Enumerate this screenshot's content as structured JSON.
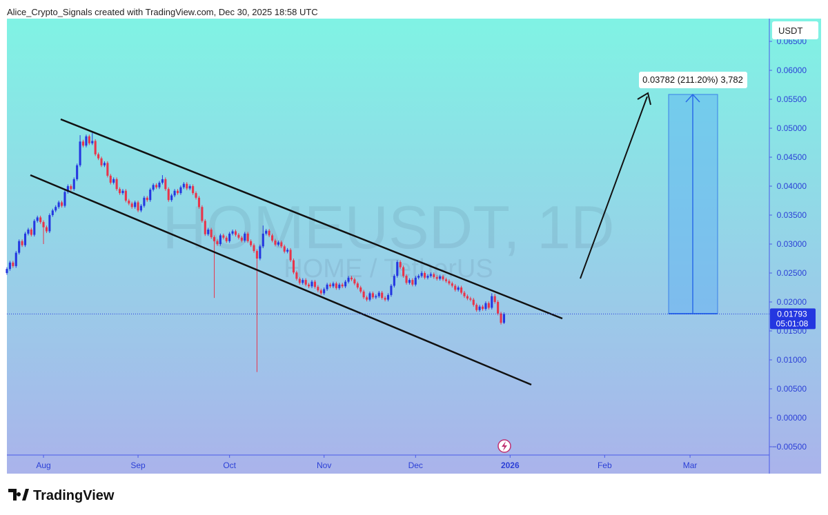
{
  "header": "Alice_Crypto_Signals created with TradingView.com, Dec 30, 2025 18:58 UTC",
  "footer": "TradingView",
  "chart_data": {
    "type": "candlestick",
    "title": "HOMEUSDT, 1D",
    "subtitle": "HOME / TetherUS",
    "currency": "USDT",
    "up_color": "#2437e0",
    "down_color": "#e8344a",
    "xlim": [
      0,
      250
    ],
    "xticks": [
      {
        "value": 12,
        "label": "Aug"
      },
      {
        "value": 43,
        "label": "Sep"
      },
      {
        "value": 73,
        "label": "Oct"
      },
      {
        "value": 104,
        "label": "Nov"
      },
      {
        "value": 134,
        "label": "Dec"
      },
      {
        "value": 165,
        "label": "2026"
      },
      {
        "value": 196,
        "label": "Feb"
      },
      {
        "value": 224,
        "label": "Mar"
      }
    ],
    "ylim": [
      -0.00643,
      0.06893
    ],
    "yticks": [
      {
        "value": -0.005,
        "label": "−0.00500"
      },
      {
        "value": 0,
        "label": "0.00000"
      },
      {
        "value": 0.005,
        "label": "0.00500"
      },
      {
        "value": 0.01,
        "label": "0.01000"
      },
      {
        "value": 0.015,
        "label": "0.01500"
      },
      {
        "value": 0.02,
        "label": "0.02000"
      },
      {
        "value": 0.025,
        "label": "0.02500"
      },
      {
        "value": 0.03,
        "label": "0.03000"
      },
      {
        "value": 0.035,
        "label": "0.03500"
      },
      {
        "value": 0.04,
        "label": "0.04000"
      },
      {
        "value": 0.045,
        "label": "0.04500"
      },
      {
        "value": 0.05,
        "label": "0.05000"
      },
      {
        "value": 0.055,
        "label": "0.05500"
      },
      {
        "value": 0.06,
        "label": "0.06000"
      },
      {
        "value": 0.065,
        "label": "0.06500"
      }
    ],
    "countdown": "05:01:08",
    "annotation": "0.03782 (211.20%) 3,782",
    "candles": [
      [
        0.025,
        0.026,
        0.0247,
        0.0257
      ],
      [
        0.0257,
        0.0271,
        0.0254,
        0.0268
      ],
      [
        0.0268,
        0.0271,
        0.0259,
        0.0262
      ],
      [
        0.0262,
        0.0288,
        0.0259,
        0.0285
      ],
      [
        0.0285,
        0.0308,
        0.0282,
        0.0305
      ],
      [
        0.0305,
        0.0308,
        0.0295,
        0.0298
      ],
      [
        0.0298,
        0.0321,
        0.0295,
        0.0318
      ],
      [
        0.0318,
        0.0328,
        0.0315,
        0.0325
      ],
      [
        0.0325,
        0.0328,
        0.0313,
        0.0316
      ],
      [
        0.0316,
        0.0343,
        0.0313,
        0.034
      ],
      [
        0.034,
        0.0349,
        0.0337,
        0.0346
      ],
      [
        0.0346,
        0.0349,
        0.0335,
        0.0338
      ],
      [
        0.0338,
        0.0341,
        0.03,
        0.0329
      ],
      [
        0.0329,
        0.0332,
        0.0319,
        0.0322
      ],
      [
        0.0322,
        0.0353,
        0.0319,
        0.035
      ],
      [
        0.035,
        0.0361,
        0.0347,
        0.0358
      ],
      [
        0.0358,
        0.0367,
        0.0355,
        0.0364
      ],
      [
        0.0364,
        0.0375,
        0.0361,
        0.0372
      ],
      [
        0.0372,
        0.0375,
        0.0363,
        0.0366
      ],
      [
        0.0366,
        0.0393,
        0.0363,
        0.039
      ],
      [
        0.039,
        0.0403,
        0.0387,
        0.04
      ],
      [
        0.04,
        0.0403,
        0.0392,
        0.0395
      ],
      [
        0.0395,
        0.0415,
        0.0392,
        0.0412
      ],
      [
        0.0412,
        0.0439,
        0.0409,
        0.0436
      ],
      [
        0.0436,
        0.0488,
        0.0433,
        0.0477
      ],
      [
        0.0477,
        0.048,
        0.0467,
        0.047
      ],
      [
        0.047,
        0.0489,
        0.0467,
        0.0486
      ],
      [
        0.0486,
        0.0489,
        0.0471,
        0.0474
      ],
      [
        0.0474,
        0.0492,
        0.0471,
        0.0478
      ],
      [
        0.0478,
        0.0481,
        0.0452,
        0.0455
      ],
      [
        0.0455,
        0.0458,
        0.0445,
        0.0448
      ],
      [
        0.0448,
        0.0451,
        0.0433,
        0.0436
      ],
      [
        0.0436,
        0.0443,
        0.0433,
        0.044
      ],
      [
        0.044,
        0.0443,
        0.0415,
        0.0418
      ],
      [
        0.0418,
        0.0421,
        0.0403,
        0.0406
      ],
      [
        0.0406,
        0.0415,
        0.0403,
        0.0412
      ],
      [
        0.0412,
        0.0415,
        0.0392,
        0.0395
      ],
      [
        0.0395,
        0.0398,
        0.0385,
        0.0388
      ],
      [
        0.0388,
        0.0395,
        0.0385,
        0.0392
      ],
      [
        0.0392,
        0.0395,
        0.0372,
        0.0375
      ],
      [
        0.0375,
        0.0378,
        0.0367,
        0.037
      ],
      [
        0.037,
        0.0373,
        0.0361,
        0.0364
      ],
      [
        0.0364,
        0.0375,
        0.0361,
        0.0372
      ],
      [
        0.0372,
        0.0375,
        0.0355,
        0.0358
      ],
      [
        0.0358,
        0.0369,
        0.0355,
        0.0366
      ],
      [
        0.0366,
        0.0383,
        0.0363,
        0.038
      ],
      [
        0.038,
        0.0383,
        0.0373,
        0.0376
      ],
      [
        0.0376,
        0.0397,
        0.0373,
        0.0394
      ],
      [
        0.0394,
        0.0405,
        0.0391,
        0.0402
      ],
      [
        0.0402,
        0.0405,
        0.0395,
        0.0398
      ],
      [
        0.0398,
        0.0409,
        0.0395,
        0.0406
      ],
      [
        0.0406,
        0.0419,
        0.0403,
        0.0412
      ],
      [
        0.0412,
        0.0415,
        0.0392,
        0.0395
      ],
      [
        0.0395,
        0.0398,
        0.0373,
        0.0376
      ],
      [
        0.0376,
        0.0387,
        0.0373,
        0.0384
      ],
      [
        0.0384,
        0.0395,
        0.0381,
        0.0392
      ],
      [
        0.0392,
        0.0395,
        0.0385,
        0.0388
      ],
      [
        0.0388,
        0.0401,
        0.0385,
        0.0398
      ],
      [
        0.0398,
        0.0407,
        0.0395,
        0.0404
      ],
      [
        0.0404,
        0.0407,
        0.0393,
        0.0396
      ],
      [
        0.0396,
        0.0403,
        0.0393,
        0.04
      ],
      [
        0.04,
        0.0403,
        0.0385,
        0.0388
      ],
      [
        0.0388,
        0.0391,
        0.0377,
        0.038
      ],
      [
        0.038,
        0.0383,
        0.0361,
        0.0364
      ],
      [
        0.0364,
        0.0367,
        0.0337,
        0.034
      ],
      [
        0.034,
        0.0343,
        0.0314,
        0.0317
      ],
      [
        0.0317,
        0.0328,
        0.0314,
        0.0325
      ],
      [
        0.0325,
        0.0328,
        0.0309,
        0.0312
      ],
      [
        0.0312,
        0.0315,
        0.0207,
        0.0305
      ],
      [
        0.0305,
        0.0308,
        0.0297,
        0.03
      ],
      [
        0.03,
        0.0318,
        0.0297,
        0.0315
      ],
      [
        0.0315,
        0.0318,
        0.0308,
        0.0311
      ],
      [
        0.0311,
        0.0314,
        0.0302,
        0.0305
      ],
      [
        0.0305,
        0.0321,
        0.0302,
        0.0318
      ],
      [
        0.0318,
        0.0325,
        0.0315,
        0.0322
      ],
      [
        0.0322,
        0.0325,
        0.0313,
        0.0316
      ],
      [
        0.0316,
        0.0319,
        0.0308,
        0.0311
      ],
      [
        0.0311,
        0.0314,
        0.0303,
        0.0306
      ],
      [
        0.0306,
        0.0321,
        0.0303,
        0.0318
      ],
      [
        0.0318,
        0.0321,
        0.0302,
        0.0305
      ],
      [
        0.0305,
        0.0308,
        0.0295,
        0.0298
      ],
      [
        0.0298,
        0.0301,
        0.0285,
        0.0288
      ],
      [
        0.0288,
        0.0291,
        0.0079,
        0.0275
      ],
      [
        0.0275,
        0.0299,
        0.0272,
        0.0296
      ],
      [
        0.0296,
        0.0332,
        0.0293,
        0.0318
      ],
      [
        0.0318,
        0.0326,
        0.0315,
        0.0323
      ],
      [
        0.0323,
        0.0326,
        0.0312,
        0.0315
      ],
      [
        0.0315,
        0.0318,
        0.0303,
        0.0306
      ],
      [
        0.0306,
        0.0309,
        0.0296,
        0.0299
      ],
      [
        0.0299,
        0.0306,
        0.0296,
        0.0303
      ],
      [
        0.0303,
        0.0306,
        0.0293,
        0.0296
      ],
      [
        0.0296,
        0.0299,
        0.0284,
        0.0287
      ],
      [
        0.0287,
        0.0293,
        0.0284,
        0.029
      ],
      [
        0.029,
        0.0293,
        0.0269,
        0.0272
      ],
      [
        0.0272,
        0.0275,
        0.0248,
        0.0251
      ],
      [
        0.0251,
        0.0254,
        0.0237,
        0.024
      ],
      [
        0.024,
        0.0243,
        0.023,
        0.0233
      ],
      [
        0.0233,
        0.0241,
        0.023,
        0.0238
      ],
      [
        0.0238,
        0.0241,
        0.0227,
        0.023
      ],
      [
        0.023,
        0.0233,
        0.0224,
        0.0227
      ],
      [
        0.0227,
        0.0238,
        0.0224,
        0.0235
      ],
      [
        0.0235,
        0.0238,
        0.0223,
        0.0226
      ],
      [
        0.0226,
        0.0229,
        0.0217,
        0.022
      ],
      [
        0.022,
        0.0223,
        0.0212,
        0.0215
      ],
      [
        0.0215,
        0.0225,
        0.0212,
        0.0222
      ],
      [
        0.0222,
        0.0233,
        0.0219,
        0.023
      ],
      [
        0.023,
        0.0233,
        0.0224,
        0.0227
      ],
      [
        0.0227,
        0.0235,
        0.0224,
        0.0232
      ],
      [
        0.0232,
        0.0235,
        0.0221,
        0.0224
      ],
      [
        0.0224,
        0.0233,
        0.0221,
        0.023
      ],
      [
        0.023,
        0.0233,
        0.0224,
        0.0227
      ],
      [
        0.0227,
        0.0238,
        0.0224,
        0.0235
      ],
      [
        0.0235,
        0.0245,
        0.0232,
        0.0242
      ],
      [
        0.0242,
        0.0245,
        0.0236,
        0.0239
      ],
      [
        0.0239,
        0.0242,
        0.0229,
        0.0232
      ],
      [
        0.0232,
        0.0235,
        0.0222,
        0.0225
      ],
      [
        0.0225,
        0.0228,
        0.0215,
        0.0218
      ],
      [
        0.0218,
        0.0221,
        0.0205,
        0.0208
      ],
      [
        0.0208,
        0.0211,
        0.0201,
        0.0204
      ],
      [
        0.0204,
        0.0218,
        0.0201,
        0.0215
      ],
      [
        0.0215,
        0.0218,
        0.0205,
        0.0208
      ],
      [
        0.0208,
        0.0213,
        0.0205,
        0.021
      ],
      [
        0.021,
        0.0219,
        0.0207,
        0.0216
      ],
      [
        0.0216,
        0.0219,
        0.0204,
        0.0207
      ],
      [
        0.0207,
        0.021,
        0.0201,
        0.0204
      ],
      [
        0.0204,
        0.0215,
        0.0201,
        0.0212
      ],
      [
        0.0212,
        0.0231,
        0.0209,
        0.0228
      ],
      [
        0.0228,
        0.0248,
        0.0225,
        0.0245
      ],
      [
        0.0245,
        0.0272,
        0.0242,
        0.0269
      ],
      [
        0.0269,
        0.0272,
        0.0257,
        0.026
      ],
      [
        0.026,
        0.0263,
        0.0242,
        0.0245
      ],
      [
        0.0245,
        0.0248,
        0.023,
        0.0233
      ],
      [
        0.0233,
        0.0241,
        0.023,
        0.0238
      ],
      [
        0.0238,
        0.0241,
        0.0227,
        0.023
      ],
      [
        0.023,
        0.0245,
        0.0227,
        0.0242
      ],
      [
        0.0242,
        0.0248,
        0.0239,
        0.0245
      ],
      [
        0.0245,
        0.0253,
        0.0242,
        0.025
      ],
      [
        0.025,
        0.0253,
        0.0239,
        0.0242
      ],
      [
        0.0242,
        0.0248,
        0.0239,
        0.0245
      ],
      [
        0.0245,
        0.0251,
        0.0242,
        0.0248
      ],
      [
        0.0248,
        0.0251,
        0.024,
        0.0243
      ],
      [
        0.0243,
        0.0246,
        0.0237,
        0.024
      ],
      [
        0.024,
        0.0247,
        0.0237,
        0.0244
      ],
      [
        0.0244,
        0.0247,
        0.0236,
        0.0239
      ],
      [
        0.0239,
        0.0242,
        0.0233,
        0.0236
      ],
      [
        0.0236,
        0.0239,
        0.0229,
        0.0232
      ],
      [
        0.0232,
        0.0235,
        0.0225,
        0.0228
      ],
      [
        0.0228,
        0.0231,
        0.0218,
        0.0221
      ],
      [
        0.0221,
        0.0228,
        0.0218,
        0.0225
      ],
      [
        0.0225,
        0.0228,
        0.0213,
        0.0216
      ],
      [
        0.0216,
        0.0219,
        0.0207,
        0.021
      ],
      [
        0.021,
        0.0213,
        0.0203,
        0.0206
      ],
      [
        0.0206,
        0.0209,
        0.0201,
        0.0204
      ],
      [
        0.0204,
        0.0207,
        0.0192,
        0.0195
      ],
      [
        0.0195,
        0.0198,
        0.0183,
        0.0186
      ],
      [
        0.0186,
        0.0195,
        0.0183,
        0.0192
      ],
      [
        0.0192,
        0.0195,
        0.0185,
        0.0188
      ],
      [
        0.0188,
        0.0201,
        0.0185,
        0.0198
      ],
      [
        0.0198,
        0.0201,
        0.0187,
        0.019
      ],
      [
        0.019,
        0.0215,
        0.0187,
        0.021
      ],
      [
        0.021,
        0.0214,
        0.0197,
        0.02
      ],
      [
        0.02,
        0.0203,
        0.0177,
        0.018
      ],
      [
        0.018,
        0.0183,
        0.0161,
        0.0164
      ],
      [
        0.0164,
        0.0182,
        0.0162,
        0.01793
      ]
    ]
  }
}
